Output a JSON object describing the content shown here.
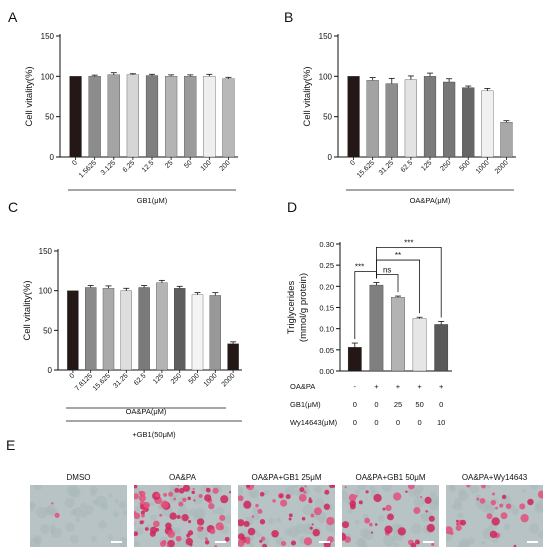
{
  "panel_labels": [
    "A",
    "B",
    "C",
    "D",
    "E"
  ],
  "chart_data": [
    {
      "panel": "A",
      "type": "bar",
      "ylabel": "Cell vitality(%)",
      "ylim": [
        0,
        150
      ],
      "yticks": [
        "0",
        "50",
        "100",
        "150"
      ],
      "categories": [
        "0",
        "1.5625",
        "3.125",
        "6.25",
        "12.5",
        "25",
        "50",
        "100",
        "200"
      ],
      "values": [
        100,
        100,
        102,
        102,
        101,
        100,
        100,
        100,
        97
      ],
      "errors": [
        0,
        1.5,
        2.5,
        1.2,
        1.5,
        1.8,
        1.8,
        2.5,
        1.8
      ],
      "colors": [
        "#231815",
        "#8c8c8c",
        "#a4a4a4",
        "#d6d6d6",
        "#7f7f7f",
        "#b4b4b4",
        "#9b9b9b",
        "#efefef",
        "#b8b8b8"
      ],
      "group_label": "GB1(μM)"
    },
    {
      "panel": "B",
      "type": "bar",
      "ylabel": "Cell vitality(%)",
      "ylim": [
        0,
        150
      ],
      "yticks": [
        "0",
        "50",
        "100",
        "150"
      ],
      "categories": [
        "0",
        "15.625",
        "31.25",
        "62.5",
        "125",
        "250",
        "500",
        "1000",
        "2000"
      ],
      "values": [
        100,
        95,
        91,
        96,
        100,
        93,
        86,
        82,
        43
      ],
      "errors": [
        0,
        3.5,
        6.5,
        4.5,
        4,
        4,
        2,
        3,
        2
      ],
      "colors": [
        "#231815",
        "#a3a3a3",
        "#8e8e8e",
        "#e3e3e3",
        "#7b7b7b",
        "#777777",
        "#666666",
        "#f0f0f0",
        "#a8a8a8"
      ],
      "group_label": "OA&PA(μM)"
    },
    {
      "panel": "C",
      "type": "bar",
      "ylabel": "Cell vitality(%)",
      "ylim": [
        0,
        150
      ],
      "yticks": [
        "0",
        "50",
        "100",
        "150"
      ],
      "categories": [
        "0",
        "7.8125",
        "15.625",
        "31.25",
        "62.5",
        "125",
        "250",
        "500",
        "1000",
        "2000"
      ],
      "values": [
        100,
        104,
        103,
        100,
        104,
        110,
        103,
        95,
        94,
        33
      ],
      "errors": [
        0,
        2.5,
        3,
        3,
        2.5,
        3,
        2.5,
        2.5,
        3.5,
        2.5
      ],
      "colors": [
        "#231815",
        "#8a8a8a",
        "#aaaaaa",
        "#dedede",
        "#7a7a7a",
        "#b4b4b4",
        "#5e5e5e",
        "#f4f4f4",
        "#989898",
        "#231815"
      ],
      "group_label": "OA&PA(μM)",
      "outer_group_label": "+GB1(50μM)"
    },
    {
      "panel": "D",
      "type": "bar",
      "ylabel_lines": [
        "Triglycerides",
        "(mmol/g protein)"
      ],
      "ylim": [
        0,
        0.3
      ],
      "yticks": [
        "0.00",
        "0.05",
        "0.10",
        "0.15",
        "0.20",
        "0.25",
        "0.30"
      ],
      "values": [
        0.056,
        0.203,
        0.174,
        0.124,
        0.11
      ],
      "errors": [
        0.01,
        0.006,
        0.003,
        0.003,
        0.007
      ],
      "colors": [
        "#231815",
        "#7f7f7f",
        "#b3b3b3",
        "#e6e6e6",
        "#595959"
      ],
      "significance": [
        {
          "from": 0,
          "to": 1,
          "label": "***"
        },
        {
          "from": 1,
          "to": 2,
          "label": "ns"
        },
        {
          "from": 1,
          "to": 3,
          "label": "**"
        },
        {
          "from": 1,
          "to": 4,
          "label": "***"
        }
      ],
      "treatment_table": [
        {
          "label": "OA&PA",
          "values": [
            "-",
            "+",
            "+",
            "+",
            "+"
          ]
        },
        {
          "label": "GB1(μM)",
          "values": [
            "0",
            "0",
            "25",
            "50",
            "0"
          ]
        },
        {
          "label": "Wy14643(μM)",
          "values": [
            "0",
            "0",
            "0",
            "0",
            "10"
          ]
        }
      ]
    }
  ],
  "micrographs": [
    {
      "label": "DMSO",
      "stain": 0.02
    },
    {
      "label": "OA&PA",
      "stain": 0.9
    },
    {
      "label": "OA&PA+GB1  25μM",
      "stain": 0.55
    },
    {
      "label": "OA&PA+GB1  50μM",
      "stain": 0.4
    },
    {
      "label": "OA&PA+Wy14643",
      "stain": 0.3
    }
  ]
}
